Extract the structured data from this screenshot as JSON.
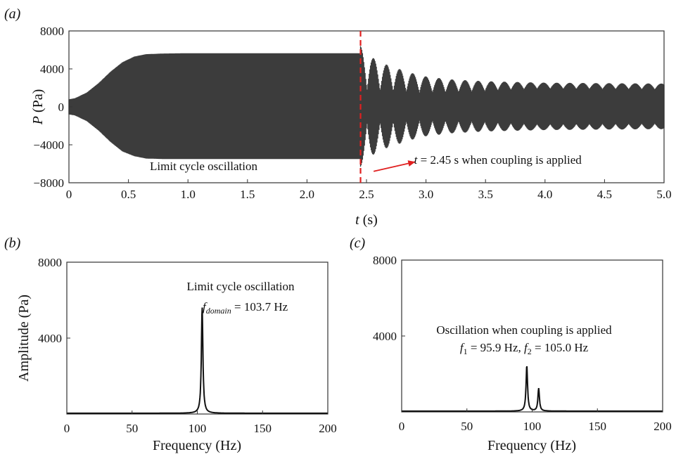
{
  "chart_data": [
    {
      "id": "a",
      "panel_label": "(a)",
      "type": "line",
      "xlabel": "t (s)",
      "ylabel": "P (Pa)",
      "xlim": [
        0,
        5.0
      ],
      "ylim": [
        -8000,
        8000
      ],
      "x_ticks": [
        0,
        0.5,
        1.0,
        1.5,
        2.0,
        2.5,
        3.0,
        3.5,
        4.0,
        4.5,
        5.0
      ],
      "x_tick_labels": [
        "0",
        "0.5",
        "1.0",
        "1.5",
        "2.0",
        "2.5",
        "3.0",
        "3.5",
        "4.0",
        "4.5",
        "5.0"
      ],
      "y_ticks": [
        8000,
        4000,
        0,
        -4000,
        -8000
      ],
      "y_tick_labels": [
        "8000",
        "4000",
        "0",
        "−4000",
        "−8000"
      ],
      "envelope": {
        "t": [
          0,
          0.05,
          0.15,
          0.25,
          0.35,
          0.45,
          0.55,
          0.65,
          0.8,
          1.0,
          1.5,
          2.0,
          2.45
        ],
        "upper": [
          800,
          900,
          1500,
          2500,
          3700,
          4700,
          5300,
          5550,
          5620,
          5650,
          5650,
          5650,
          5650
        ],
        "lower": [
          -800,
          -900,
          -1500,
          -2500,
          -3700,
          -4700,
          -5200,
          -5450,
          -5500,
          -5500,
          -5500,
          -5500,
          -5500
        ]
      },
      "coupled_envelope": {
        "t": [
          2.45,
          2.5,
          2.6,
          2.7,
          2.8,
          2.9,
          3.0,
          3.2,
          3.5,
          4.0,
          4.5,
          5.0
        ],
        "upper": [
          6400,
          5600,
          4800,
          4300,
          3900,
          3500,
          3200,
          2900,
          2700,
          2550,
          2500,
          2450
        ],
        "lower": [
          -6300,
          -5500,
          -4700,
          -4200,
          -3800,
          -3400,
          -3100,
          -2800,
          -2600,
          -2450,
          -2400,
          -2350
        ],
        "beat_frequency_hz": 9.1
      },
      "vertical_marker": {
        "x": 2.45,
        "color": "#e02020"
      },
      "annotations": [
        {
          "text": "Limit cycle oscillation",
          "x": 0.68,
          "y": -6650
        },
        {
          "text_italic": "t",
          "text": " = 2.45 s when coupling is applied",
          "x": 2.9,
          "y": -6000,
          "arrow_from": [
            2.56,
            -6800
          ],
          "arrow_to": [
            2.91,
            -5800
          ],
          "arrow_color": "#e02020"
        }
      ]
    },
    {
      "id": "b",
      "panel_label": "(b)",
      "type": "line",
      "xlabel": "Frequency (Hz)",
      "ylabel": "Amplitude (Pa)",
      "xlim": [
        0,
        200
      ],
      "ylim": [
        0,
        8000
      ],
      "x_ticks": [
        0,
        50,
        100,
        150,
        200
      ],
      "x_tick_labels": [
        "0",
        "50",
        "100",
        "150",
        "200"
      ],
      "y_ticks": [
        8000,
        4000
      ],
      "y_tick_labels": [
        "8000",
        "4000"
      ],
      "series": [
        {
          "peaks": [
            {
              "f": 103.7,
              "amplitude": 5600,
              "width": 0.7
            }
          ],
          "baseline": 40
        }
      ],
      "annotations": [
        {
          "text": "Limit cycle oscillation"
        },
        {
          "symbol": "f",
          "subscript": "domain",
          "text": " = 103.7 Hz"
        }
      ]
    },
    {
      "id": "c",
      "panel_label": "(c)",
      "type": "line",
      "xlabel": "Frequency (Hz)",
      "ylabel": "",
      "xlim": [
        0,
        200
      ],
      "ylim": [
        0,
        8000
      ],
      "x_ticks": [
        0,
        50,
        100,
        150,
        200
      ],
      "x_tick_labels": [
        "0",
        "50",
        "100",
        "150",
        "200"
      ],
      "y_ticks": [
        8000,
        4000
      ],
      "y_tick_labels": [
        "8000",
        "4000"
      ],
      "series": [
        {
          "peaks": [
            {
              "f": 95.9,
              "amplitude": 2400,
              "width": 0.7
            },
            {
              "f": 105.0,
              "amplitude": 1200,
              "width": 0.7
            }
          ],
          "baseline": 40
        }
      ],
      "annotations": [
        {
          "text": "Oscillation when coupling is applied"
        },
        {
          "f1_label": "f",
          "f1_sub": "1",
          "f1_text": " = 95.9 Hz, ",
          "f2_label": "f",
          "f2_sub": "2",
          "f2_text": " = 105.0 Hz"
        }
      ]
    }
  ]
}
